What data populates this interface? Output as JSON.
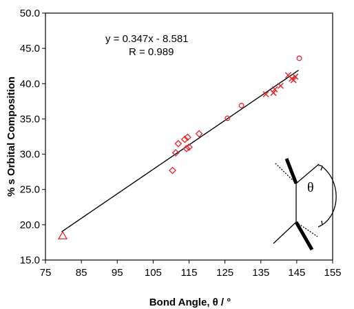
{
  "chart_data": {
    "type": "scatter",
    "xlabel": "Bond Angle, θ / °",
    "ylabel": "% s Orbital Composition",
    "xlim": [
      75,
      155
    ],
    "ylim": [
      15,
      50
    ],
    "xticks": [
      75,
      85,
      95,
      105,
      115,
      125,
      135,
      145,
      155
    ],
    "yticks": [
      15.0,
      20.0,
      25.0,
      30.0,
      35.0,
      40.0,
      45.0,
      50.0
    ],
    "xtick_labels": [
      "75",
      "85",
      "95",
      "105",
      "115",
      "125",
      "135",
      "145",
      "155"
    ],
    "ytick_labels": [
      "15.0",
      "20.0",
      "25.0",
      "30.0",
      "35.0",
      "40.0",
      "45.0",
      "50.0"
    ],
    "grid": false,
    "marker_color": "#e8212a",
    "line_color": "#000000",
    "annotation": {
      "equation": "y = 0.347x - 8.581",
      "r_value": "R = 0.989"
    },
    "series": [
      {
        "marker": "triangle",
        "x": [
          79.8
        ],
        "y": [
          18.4
        ]
      },
      {
        "marker": "diamond",
        "x": [
          110.4,
          111.3,
          112.0,
          113.8,
          114.6,
          115.0,
          114.3,
          117.8
        ],
        "y": [
          27.7,
          30.2,
          31.5,
          32.1,
          32.4,
          31.0,
          30.8,
          32.9
        ]
      },
      {
        "marker": "circle",
        "x": [
          125.7,
          129.6,
          145.7
        ],
        "y": [
          35.1,
          36.9,
          43.6
        ]
      },
      {
        "marker": "cross",
        "x": [
          136.4,
          138.5,
          138.9,
          140.5,
          142.6,
          143.6,
          144.1,
          144.6
        ],
        "y": [
          38.5,
          38.7,
          39.2,
          39.7,
          41.2,
          40.7,
          40.5,
          41.0
        ]
      }
    ],
    "fit_line": {
      "x": [
        79.5,
        145.5
      ],
      "slope": 0.347,
      "intercept": -8.581
    }
  },
  "inset": {
    "label": "θ"
  }
}
